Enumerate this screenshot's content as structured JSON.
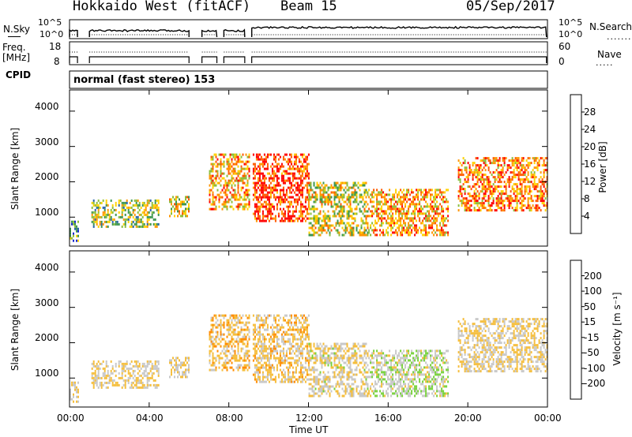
{
  "header": {
    "station": "Hokkaido West (fitACF)",
    "beam": "Beam 15",
    "date": "05/Sep/2017"
  },
  "summary": {
    "nsky_label": "N.Sky",
    "freq_label_1": "Freq.",
    "freq_label_2": "[MHz]",
    "cpid_label": "CPID",
    "nsearch_label": "N.Search",
    "nave_label": "Nave",
    "noise_ticks_left": [
      "10^5",
      "10^0"
    ],
    "noise_ticks_right": [
      "10^5",
      "10^0"
    ],
    "freq_ticks": [
      "18",
      "8"
    ],
    "nave_ticks": [
      "60",
      "0"
    ],
    "cpid_text": "normal (fast stereo) 153"
  },
  "x_axis": {
    "label": "Time UT",
    "ticks": [
      "00:00",
      "04:00",
      "08:00",
      "12:00",
      "16:00",
      "20:00",
      "00:00"
    ]
  },
  "panels": {
    "power": {
      "ylabel": "Slant Range [km]",
      "yticks": [
        "4000",
        "3000",
        "2000",
        "1000"
      ],
      "cbar_label": "Power [dB]",
      "cbar_ticks": [
        "28",
        "24",
        "20",
        "16",
        "12",
        "8",
        "4"
      ],
      "cbar_colors": [
        "#ff0000",
        "#ff5a00",
        "#ff9600",
        "#ffd200",
        "#8cbe3c",
        "#3c9650",
        "#2864aa",
        "#1428d2"
      ]
    },
    "velocity": {
      "ylabel": "Slant Range [km]",
      "yticks": [
        "4000",
        "3000",
        "2000",
        "1000"
      ],
      "cbar_label": "Velocity [m s⁻¹]",
      "cbar_ticks": [
        "200",
        "100",
        "50",
        "15",
        "-15",
        "-50",
        "-100",
        "-200"
      ],
      "cbar_colors": [
        "#1e32b4",
        "#288c46",
        "#78d23c",
        "#c8c8c8",
        "#f5be3c",
        "#ff8c00",
        "#ff5000",
        "#ff0000"
      ]
    }
  },
  "chart_data": [
    {
      "type": "heatmap",
      "title": "Power",
      "xlabel": "Time UT",
      "ylabel": "Slant Range [km]",
      "xlim_hours": [
        0,
        24
      ],
      "ylim_km": [
        180,
        4600
      ],
      "value_label": "Power [dB]",
      "value_range": [
        0,
        30
      ],
      "echo_regions": [
        {
          "t_start": 0.0,
          "t_end": 0.4,
          "r_min": 300,
          "r_max": 900,
          "power_db": 8
        },
        {
          "t_start": 1.1,
          "t_end": 4.5,
          "r_min": 700,
          "r_max": 1500,
          "power_db": 14
        },
        {
          "t_start": 5.0,
          "t_end": 6.0,
          "r_min": 1000,
          "r_max": 1600,
          "power_db": 16
        },
        {
          "t_start": 7.0,
          "t_end": 9.0,
          "r_min": 1200,
          "r_max": 2800,
          "power_db": 20
        },
        {
          "t_start": 9.2,
          "t_end": 12.0,
          "r_min": 900,
          "r_max": 2800,
          "power_db": 26
        },
        {
          "t_start": 12.0,
          "t_end": 15.0,
          "r_min": 500,
          "r_max": 2000,
          "power_db": 16
        },
        {
          "t_start": 15.0,
          "t_end": 19.0,
          "r_min": 500,
          "r_max": 1800,
          "power_db": 20
        },
        {
          "t_start": 19.5,
          "t_end": 24.0,
          "r_min": 1200,
          "r_max": 2700,
          "power_db": 22
        }
      ],
      "data_gaps_hours": [
        [
          0.4,
          1.0
        ],
        [
          6.0,
          6.6
        ],
        [
          7.4,
          7.7
        ],
        [
          8.8,
          9.1
        ]
      ]
    },
    {
      "type": "heatmap",
      "title": "Velocity",
      "xlabel": "Time UT",
      "ylabel": "Slant Range [km]",
      "xlim_hours": [
        0,
        24
      ],
      "ylim_km": [
        180,
        4600
      ],
      "value_label": "Velocity [m s⁻¹]",
      "value_range": [
        -250,
        250
      ],
      "echo_regions": [
        {
          "t_start": 0.0,
          "t_end": 0.4,
          "r_min": 300,
          "r_max": 900,
          "velocity": 0
        },
        {
          "t_start": 1.1,
          "t_end": 4.5,
          "r_min": 700,
          "r_max": 1500,
          "velocity": 0
        },
        {
          "t_start": 5.0,
          "t_end": 6.0,
          "r_min": 1000,
          "r_max": 1600,
          "velocity": 0
        },
        {
          "t_start": 7.0,
          "t_end": 9.0,
          "r_min": 1200,
          "r_max": 2800,
          "velocity": -30
        },
        {
          "t_start": 9.2,
          "t_end": 12.0,
          "r_min": 900,
          "r_max": 2800,
          "velocity": -20
        },
        {
          "t_start": 12.0,
          "t_end": 15.0,
          "r_min": 500,
          "r_max": 2000,
          "velocity": 10
        },
        {
          "t_start": 15.0,
          "t_end": 19.0,
          "r_min": 500,
          "r_max": 1800,
          "velocity": 40
        },
        {
          "t_start": 19.5,
          "t_end": 24.0,
          "r_min": 1200,
          "r_max": 2700,
          "velocity": 0
        }
      ],
      "data_gaps_hours": [
        [
          0.4,
          1.0
        ],
        [
          6.0,
          6.6
        ],
        [
          7.4,
          7.7
        ],
        [
          8.8,
          9.1
        ]
      ]
    }
  ]
}
